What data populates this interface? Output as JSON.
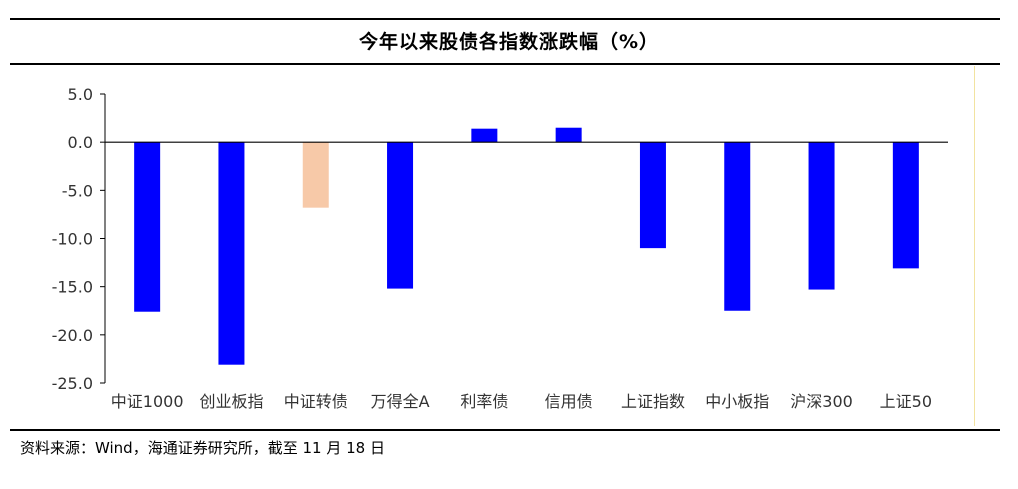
{
  "title": "今年以来股债各指数涨跌幅（%）",
  "source": "资料来源：Wind，海通证券研究所，截至 11 月 18 日",
  "colors": {
    "primary_bar": "#0000ff",
    "highlight_bar": "#f7c9a8"
  },
  "chart_data": {
    "type": "bar",
    "title": "今年以来股债各指数涨跌幅（%）",
    "categories": [
      "中证1000",
      "创业板指",
      "中证转债",
      "万得全A",
      "利率债",
      "信用债",
      "上证指数",
      "中小板指",
      "沪深300",
      "上证50"
    ],
    "values": [
      -17.6,
      -23.1,
      -6.8,
      -15.2,
      1.4,
      1.5,
      -11.0,
      -17.5,
      -15.3,
      -13.1
    ],
    "highlight_index": 2,
    "ylim": [
      -25,
      5
    ],
    "yticks": [
      5,
      0,
      -5,
      -10,
      -15,
      -20,
      -25
    ],
    "ytick_labels": [
      "5.0",
      "0.0",
      "-5.0",
      "-10.0",
      "-15.0",
      "-20.0",
      "-25.0"
    ],
    "xlabel": "",
    "ylabel": "",
    "grid": false,
    "legend": "none"
  }
}
